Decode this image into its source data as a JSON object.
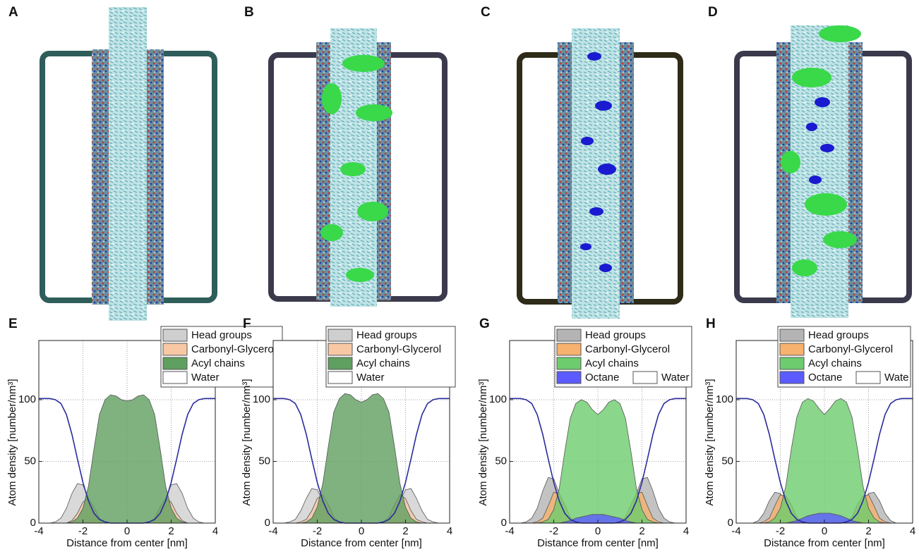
{
  "panels": [
    "A",
    "B",
    "C",
    "D"
  ],
  "chart_data": [
    {
      "type": "area",
      "panel_label": "E",
      "xlabel": "Distance from center [nm]",
      "ylabel": "Atom density [number/nm³]",
      "xlim": [
        -4,
        4
      ],
      "xticks": [
        -4,
        -2,
        0,
        2,
        4
      ],
      "ylim": [
        0,
        148
      ],
      "yticks": [
        0,
        50,
        100
      ],
      "grid": true,
      "x": [
        -4,
        -3.75,
        -3.5,
        -3.25,
        -3,
        -2.75,
        -2.5,
        -2.25,
        -2,
        -1.75,
        -1.5,
        -1.25,
        -1,
        -0.75,
        -0.5,
        -0.25,
        0,
        0.25,
        0.5,
        0.75,
        1,
        1.25,
        1.5,
        1.75,
        2,
        2.25,
        2.5,
        2.75,
        3,
        3.25,
        3.5,
        3.75,
        4
      ],
      "series": [
        {
          "name": "Head groups",
          "style": "area",
          "color": "#cfcfcf",
          "values": [
            0,
            0,
            0,
            1,
            4,
            12,
            24,
            32,
            31,
            20,
            8,
            2,
            0,
            0,
            0,
            0,
            0,
            0,
            0,
            0,
            0,
            2,
            8,
            20,
            31,
            32,
            24,
            12,
            4,
            1,
            0,
            0,
            0
          ]
        },
        {
          "name": "Carbonyl-Glycerol",
          "style": "area",
          "color": "#f8c8a4",
          "values": [
            0,
            0,
            0,
            0,
            0,
            0,
            2,
            8,
            17,
            20,
            13,
            4,
            1,
            0,
            0,
            0,
            0,
            0,
            0,
            0,
            1,
            4,
            13,
            20,
            17,
            8,
            2,
            0,
            0,
            0,
            0,
            0,
            0
          ]
        },
        {
          "name": "Acyl chains",
          "style": "area",
          "color": "#5f9f5f",
          "values": [
            0,
            0,
            0,
            0,
            0,
            0,
            1,
            4,
            12,
            30,
            60,
            88,
            100,
            104,
            103,
            100,
            99,
            100,
            103,
            104,
            100,
            88,
            60,
            30,
            12,
            4,
            1,
            0,
            0,
            0,
            0,
            0,
            0
          ]
        },
        {
          "name": "Water",
          "style": "line",
          "color": "#2b2b9c",
          "legend_color": "#ffffff",
          "values": [
            101,
            101,
            101,
            100,
            97,
            88,
            72,
            52,
            33,
            18,
            8,
            3,
            1,
            0,
            0,
            0,
            0,
            0,
            0,
            0,
            1,
            3,
            8,
            18,
            33,
            52,
            72,
            88,
            97,
            100,
            101,
            101,
            101
          ]
        }
      ]
    },
    {
      "type": "area",
      "panel_label": "F",
      "xlabel": "Distance from center [nm]",
      "ylabel": "Atom density [number/nm³]",
      "xlim": [
        -4,
        4
      ],
      "xticks": [
        -4,
        -2,
        0,
        2,
        4
      ],
      "ylim": [
        0,
        148
      ],
      "yticks": [
        0,
        50,
        100
      ],
      "grid": true,
      "x": [
        -4,
        -3.75,
        -3.5,
        -3.25,
        -3,
        -2.75,
        -2.5,
        -2.25,
        -2,
        -1.75,
        -1.5,
        -1.25,
        -1,
        -0.75,
        -0.5,
        -0.25,
        0,
        0.25,
        0.5,
        0.75,
        1,
        1.25,
        1.5,
        1.75,
        2,
        2.25,
        2.5,
        2.75,
        3,
        3.25,
        3.5,
        3.75,
        4
      ],
      "series": [
        {
          "name": "Head groups",
          "style": "area",
          "color": "#cfcfcf",
          "values": [
            0,
            0,
            0,
            1,
            3,
            10,
            20,
            28,
            27,
            18,
            8,
            2,
            0,
            0,
            0,
            0,
            0,
            0,
            0,
            0,
            0,
            2,
            8,
            18,
            27,
            28,
            20,
            10,
            3,
            1,
            0,
            0,
            0
          ]
        },
        {
          "name": "Carbonyl-Glycerol",
          "style": "area",
          "color": "#f8c8a4",
          "values": [
            0,
            0,
            0,
            0,
            0,
            1,
            3,
            10,
            20,
            23,
            15,
            5,
            1,
            0,
            0,
            0,
            0,
            0,
            0,
            0,
            1,
            5,
            15,
            23,
            20,
            10,
            3,
            1,
            0,
            0,
            0,
            0,
            0
          ]
        },
        {
          "name": "Acyl chains",
          "style": "area",
          "color": "#5f9f5f",
          "values": [
            0,
            0,
            0,
            0,
            0,
            0,
            1,
            4,
            13,
            32,
            62,
            90,
            101,
            105,
            104,
            100,
            98,
            100,
            104,
            105,
            101,
            90,
            62,
            32,
            13,
            4,
            1,
            0,
            0,
            0,
            0,
            0,
            0
          ]
        },
        {
          "name": "Water",
          "style": "line",
          "color": "#2b2b9c",
          "legend_color": "#ffffff",
          "values": [
            101,
            101,
            101,
            100,
            97,
            88,
            72,
            52,
            33,
            18,
            8,
            3,
            1,
            0,
            0,
            0,
            0,
            0,
            0,
            0,
            1,
            3,
            8,
            18,
            33,
            52,
            72,
            88,
            97,
            100,
            101,
            101,
            101
          ]
        }
      ]
    },
    {
      "type": "area",
      "panel_label": "G",
      "xlabel": "Distance from center [nm]",
      "ylabel": "Atom density [number/nm³]",
      "xlim": [
        -4,
        4
      ],
      "xticks": [
        -4,
        -2,
        0,
        2,
        4
      ],
      "ylim": [
        0,
        148
      ],
      "yticks": [
        0,
        50,
        100
      ],
      "grid": true,
      "x": [
        -4,
        -3.75,
        -3.5,
        -3.25,
        -3,
        -2.75,
        -2.5,
        -2.25,
        -2,
        -1.75,
        -1.5,
        -1.25,
        -1,
        -0.75,
        -0.5,
        -0.25,
        0,
        0.25,
        0.5,
        0.75,
        1,
        1.25,
        1.5,
        1.75,
        2,
        2.25,
        2.5,
        2.75,
        3,
        3.25,
        3.5,
        3.75,
        4
      ],
      "series": [
        {
          "name": "Head groups",
          "style": "area",
          "color": "#b4b4b4",
          "values": [
            0,
            0,
            0,
            1,
            4,
            12,
            26,
            37,
            36,
            24,
            10,
            2,
            0,
            0,
            0,
            0,
            0,
            0,
            0,
            0,
            0,
            2,
            10,
            24,
            36,
            37,
            26,
            12,
            4,
            1,
            0,
            0,
            0
          ]
        },
        {
          "name": "Carbonyl-Glycerol",
          "style": "area",
          "color": "#f6b26e",
          "values": [
            0,
            0,
            0,
            0,
            0,
            1,
            4,
            14,
            25,
            24,
            15,
            5,
            1,
            0,
            0,
            0,
            0,
            0,
            0,
            0,
            1,
            5,
            15,
            24,
            25,
            14,
            4,
            1,
            0,
            0,
            0,
            0,
            0
          ]
        },
        {
          "name": "Acyl chains",
          "style": "area",
          "color": "#6dcc6d",
          "values": [
            0,
            0,
            0,
            0,
            0,
            0,
            1,
            3,
            11,
            28,
            58,
            85,
            97,
            100,
            98,
            92,
            88,
            92,
            98,
            100,
            97,
            85,
            58,
            28,
            11,
            3,
            1,
            0,
            0,
            0,
            0,
            0,
            0
          ]
        },
        {
          "name": "Octane",
          "style": "area",
          "color": "#5b5bff",
          "values": [
            0,
            0,
            0,
            0,
            0,
            0,
            0,
            0,
            0,
            0,
            1,
            2,
            4,
            5,
            6,
            7,
            7,
            7,
            6,
            5,
            4,
            2,
            1,
            0,
            0,
            0,
            0,
            0,
            0,
            0,
            0,
            0,
            0
          ]
        },
        {
          "name": "Water",
          "style": "line",
          "color": "#2b2b9c",
          "legend_color": "#ffffff",
          "values": [
            101,
            101,
            101,
            100,
            97,
            88,
            72,
            52,
            33,
            18,
            8,
            3,
            1,
            0,
            0,
            0,
            0,
            0,
            0,
            0,
            1,
            3,
            8,
            18,
            33,
            52,
            72,
            88,
            97,
            100,
            101,
            101,
            101
          ]
        }
      ]
    },
    {
      "type": "area",
      "panel_label": "H",
      "xlabel": "Distance from center [nm]",
      "ylabel": "Atom density [number/nm³]",
      "xlim": [
        -4,
        4
      ],
      "xticks": [
        -4,
        -2,
        0,
        2,
        4
      ],
      "ylim": [
        0,
        148
      ],
      "yticks": [
        0,
        50,
        100
      ],
      "grid": true,
      "x": [
        -4,
        -3.75,
        -3.5,
        -3.25,
        -3,
        -2.75,
        -2.5,
        -2.25,
        -2,
        -1.75,
        -1.5,
        -1.25,
        -1,
        -0.75,
        -0.5,
        -0.25,
        0,
        0.25,
        0.5,
        0.75,
        1,
        1.25,
        1.5,
        1.75,
        2,
        2.25,
        2.5,
        2.75,
        3,
        3.25,
        3.5,
        3.75,
        4
      ],
      "series": [
        {
          "name": "Head groups",
          "style": "area",
          "color": "#b4b4b4",
          "values": [
            0,
            0,
            0,
            0,
            2,
            8,
            18,
            25,
            24,
            18,
            8,
            2,
            0,
            0,
            0,
            0,
            0,
            0,
            0,
            0,
            0,
            2,
            8,
            18,
            24,
            25,
            18,
            8,
            2,
            0,
            0,
            0,
            0
          ]
        },
        {
          "name": "Carbonyl-Glycerol",
          "style": "area",
          "color": "#f6b26e",
          "values": [
            0,
            0,
            0,
            0,
            0,
            1,
            4,
            14,
            23,
            22,
            15,
            5,
            1,
            0,
            0,
            0,
            0,
            0,
            0,
            0,
            1,
            5,
            15,
            22,
            23,
            14,
            4,
            1,
            0,
            0,
            0,
            0,
            0
          ]
        },
        {
          "name": "Acyl chains",
          "style": "area",
          "color": "#6dcc6d",
          "values": [
            0,
            0,
            0,
            0,
            0,
            0,
            1,
            4,
            12,
            30,
            60,
            86,
            98,
            101,
            99,
            93,
            88,
            93,
            99,
            101,
            98,
            86,
            60,
            30,
            12,
            4,
            1,
            0,
            0,
            0,
            0,
            0,
            0
          ]
        },
        {
          "name": "Octane",
          "style": "area",
          "color": "#5b5bff",
          "values": [
            0,
            0,
            0,
            0,
            0,
            0,
            0,
            0,
            0,
            0,
            1,
            2,
            4,
            6,
            7,
            8,
            8,
            8,
            7,
            6,
            4,
            2,
            1,
            0,
            0,
            0,
            0,
            0,
            0,
            0,
            0,
            0,
            0
          ]
        },
        {
          "name": "Wate",
          "style": "line",
          "color": "#2b2b9c",
          "legend_color": "#ffffff",
          "values": [
            101,
            101,
            101,
            100,
            97,
            88,
            72,
            52,
            33,
            18,
            8,
            3,
            1,
            0,
            0,
            0,
            0,
            0,
            0,
            0,
            1,
            3,
            8,
            18,
            33,
            52,
            72,
            88,
            97,
            100,
            101,
            101,
            101
          ]
        }
      ]
    }
  ]
}
